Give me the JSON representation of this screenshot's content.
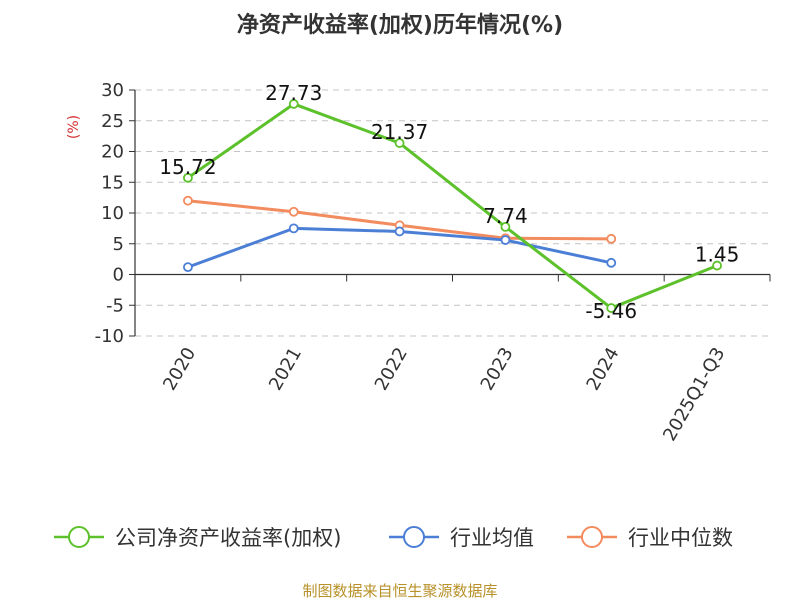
{
  "chart_data": {
    "type": "line",
    "title": "净资产收益率(加权)历年情况(%)",
    "ylabel": "(%)",
    "categories": [
      "2020",
      "2021",
      "2022",
      "2023",
      "2024",
      "2025Q1-Q3"
    ],
    "ylim": [
      -10,
      30
    ],
    "yticks": [
      "30",
      "25",
      "20",
      "15",
      "10",
      "5",
      "0",
      "-5",
      "-10"
    ],
    "grid": true,
    "legend_position": "bottom",
    "series": [
      {
        "name": "公司净资产收益率(加权)",
        "color": "#5cc12a",
        "values": [
          15.72,
          27.73,
          21.37,
          7.74,
          -5.46,
          1.45
        ],
        "labels": [
          "15.72",
          "27.73",
          "21.37",
          "7.74",
          "-5.46",
          "1.45"
        ]
      },
      {
        "name": "行业均值",
        "color": "#4b7fd6",
        "values": [
          1.2,
          7.5,
          7.0,
          5.6,
          1.9,
          null
        ]
      },
      {
        "name": "行业中位数",
        "color": "#f28b5e",
        "values": [
          12.0,
          10.2,
          8.0,
          5.9,
          5.8,
          null
        ]
      }
    ]
  },
  "colors": {
    "ylabel": "#d32f2f",
    "source": "#b8912a"
  },
  "source": "制图数据来自恒生聚源数据库"
}
